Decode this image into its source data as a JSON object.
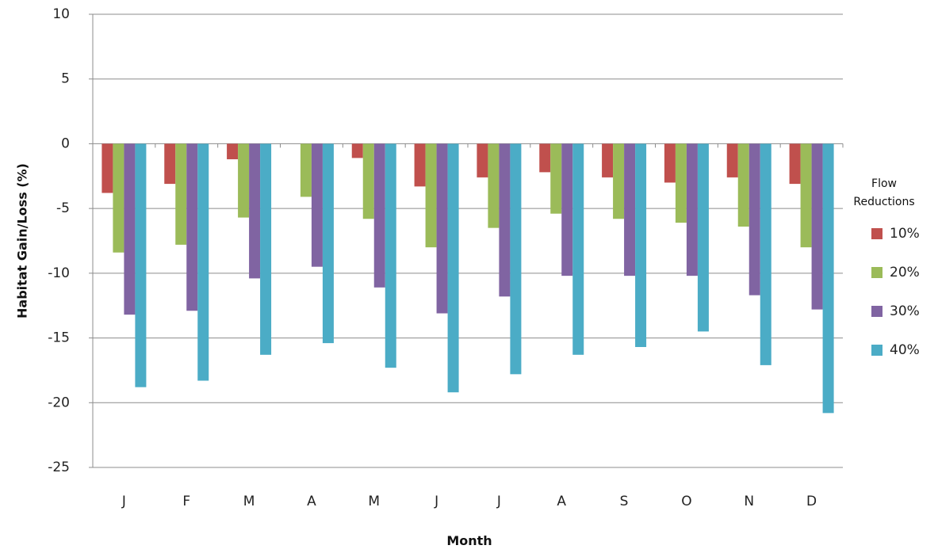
{
  "chart_data": {
    "type": "bar",
    "xlabel": "Month",
    "ylabel": "Habitat Gain/Loss (%)",
    "categories": [
      "J",
      "F",
      "M",
      "A",
      "M",
      "J",
      "J",
      "A",
      "S",
      "O",
      "N",
      "D"
    ],
    "ylim": [
      -25,
      10
    ],
    "yticks": [
      10,
      5,
      0,
      -5,
      -10,
      -15,
      -20,
      -25
    ],
    "grid": true,
    "legend": {
      "title_line1": "Flow",
      "title_line2": "Reductions",
      "position": "right"
    },
    "series": [
      {
        "name": "10%",
        "color": "#c0504d",
        "values": [
          -3.8,
          -3.1,
          -1.2,
          0,
          -1.1,
          -3.3,
          -2.6,
          -2.2,
          -2.6,
          -3.0,
          -2.6,
          -3.1
        ]
      },
      {
        "name": "20%",
        "color": "#9bbb59",
        "values": [
          -8.4,
          -7.8,
          -5.7,
          -4.1,
          -5.8,
          -8.0,
          -6.5,
          -5.4,
          -5.8,
          -6.1,
          -6.4,
          -8.0
        ]
      },
      {
        "name": "30%",
        "color": "#8064a2",
        "values": [
          -13.2,
          -12.9,
          -10.4,
          -9.5,
          -11.1,
          -13.1,
          -11.8,
          -10.2,
          -10.2,
          -10.2,
          -11.7,
          -12.8
        ]
      },
      {
        "name": "40%",
        "color": "#4bacc6",
        "values": [
          -18.8,
          -18.3,
          -16.3,
          -15.4,
          -17.3,
          -19.2,
          -17.8,
          -16.3,
          -15.7,
          -14.5,
          -17.1,
          -20.8
        ]
      }
    ]
  }
}
